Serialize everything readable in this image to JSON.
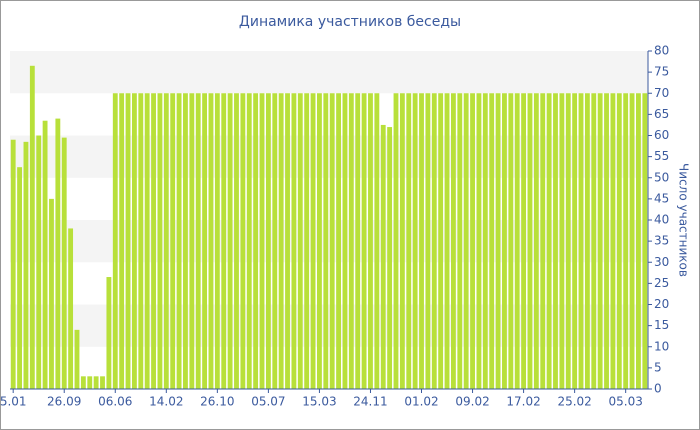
{
  "chart_data": {
    "type": "bar",
    "title": "Динамика участников беседы",
    "y_label": "Число участников",
    "categories": [
      "5.01",
      null,
      null,
      null,
      null,
      null,
      null,
      null,
      "26.09",
      null,
      null,
      null,
      null,
      null,
      null,
      null,
      "06.06",
      null,
      null,
      null,
      null,
      null,
      null,
      null,
      "14.02",
      null,
      null,
      null,
      null,
      null,
      null,
      null,
      "26.10",
      null,
      null,
      null,
      null,
      null,
      null,
      null,
      "05.07",
      null,
      null,
      null,
      null,
      null,
      null,
      null,
      "15.03",
      null,
      null,
      null,
      null,
      null,
      null,
      null,
      "24.11",
      null,
      null,
      null,
      null,
      null,
      null,
      null,
      "01.02",
      null,
      null,
      null,
      null,
      null,
      null,
      null,
      "09.02",
      null,
      null,
      null,
      null,
      null,
      null,
      null,
      "17.02",
      null,
      null,
      null,
      null,
      null,
      null,
      null,
      "25.02",
      null,
      null,
      null,
      null,
      null,
      null,
      null,
      "05.03",
      null,
      null,
      null
    ],
    "values": [
      59,
      52.5,
      58.5,
      76.5,
      60,
      63.5,
      45,
      64,
      59.5,
      38,
      14,
      3,
      3,
      3,
      3,
      26.5,
      70,
      70,
      70,
      70,
      70,
      70,
      70,
      70,
      70,
      70,
      70,
      70,
      70,
      70,
      70,
      70,
      70,
      70,
      70,
      70,
      70,
      70,
      70,
      70,
      70,
      70,
      70,
      70,
      70,
      70,
      70,
      70,
      70,
      70,
      70,
      70,
      70,
      70,
      70,
      70,
      70,
      70,
      62.5,
      62,
      70,
      70,
      70,
      70,
      70,
      70,
      70,
      70,
      70,
      70,
      70,
      70,
      70,
      70,
      70,
      70,
      70,
      70,
      70,
      70,
      70,
      70,
      70,
      70,
      70,
      70,
      70,
      70,
      70,
      70,
      70,
      70,
      70,
      70,
      70,
      70,
      70,
      70,
      70,
      70
    ],
    "color": "#b8e03a",
    "ylim": [
      0,
      80
    ],
    "yticks": [
      0,
      5,
      10,
      15,
      20,
      25,
      30,
      35,
      40,
      45,
      50,
      55,
      60,
      65,
      70,
      75,
      80
    ],
    "grid": true
  }
}
